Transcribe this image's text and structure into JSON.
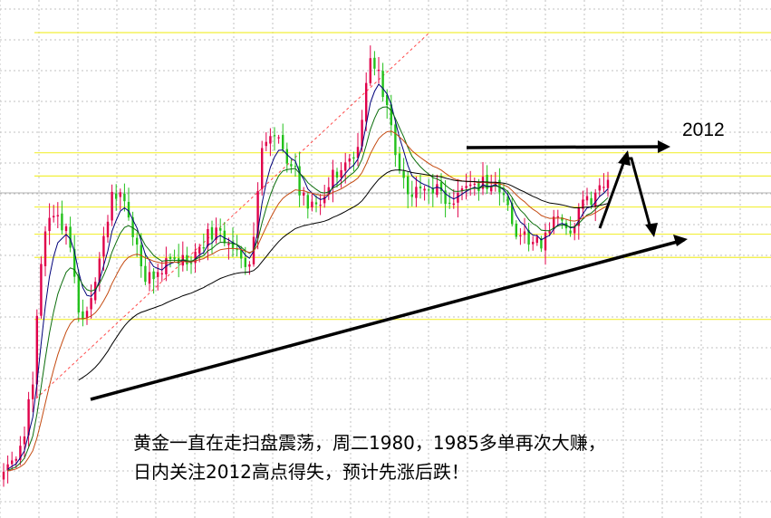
{
  "chart_data": {
    "type": "candlestick",
    "title": "",
    "annotation_label": "2012",
    "caption": [
      "黄金一直在走扫盘震荡，周二1980，1985多单再次大赚，",
      "日内关注2012高点得失，预计先涨后跌！"
    ],
    "price_range": [
      1900,
      2018
    ],
    "horizontal_levels": [
      2018,
      1987,
      1981,
      1973,
      1966,
      1960,
      1944
    ],
    "reference_levels": [
      2012,
      1985,
      1980
    ],
    "colors": {
      "up_candle": "#e0004a",
      "down_candle": "#22c11b",
      "ma_fast": "#00007a",
      "ma_medium": "#0c6e0c",
      "ma_slow": "#c44a10",
      "ma_long": "#000000",
      "level_line": "#f2ef3a",
      "grid": "#c0c0c0",
      "channel_line": "#ff4a4a",
      "trend_line": "#000000"
    },
    "grid": true,
    "candle_count": 146,
    "candles_close": [
      1904.7,
      1906.6,
      1907.6,
      1908.0,
      1911.4,
      1913.8,
      1923.4,
      1927.2,
      1944.9,
      1958.3,
      1966.7,
      1970.2,
      1970.7,
      1970.9,
      1967.0,
      1968.0,
      1962.5,
      1955.0,
      1945.8,
      1944.0,
      1946.2,
      1949.5,
      1953.7,
      1959.7,
      1965.5,
      1969.2,
      1976.9,
      1975.1,
      1976.8,
      1974.5,
      1970.3,
      1965.2,
      1963.3,
      1957.7,
      1953.7,
      1956.2,
      1954.4,
      1956.2,
      1955.9,
      1959.8,
      1959.6,
      1959.6,
      1958.4,
      1960.6,
      1958.2,
      1958.3,
      1961.5,
      1962.7,
      1962.3,
      1967.3,
      1964.6,
      1967.7,
      1966.9,
      1963.7,
      1963.6,
      1962.4,
      1962.1,
      1959.7,
      1957.5,
      1958.2,
      1965.3,
      1977.1,
      1988.2,
      1989.8,
      1991.3,
      1991.3,
      1991.0,
      1987.9,
      1984.2,
      1983.5,
      1983.6,
      1976.0,
      1976.7,
      1972.6,
      1974.4,
      1973.7,
      1973.6,
      1975.7,
      1978.1,
      1982.6,
      1980.6,
      1982.5,
      1984.5,
      1985.5,
      1985.5,
      1988.5,
      1995.5,
      2005.0,
      2011.4,
      2008.7,
      2008.4,
      2001.4,
      1999.3,
      1994.1,
      1986.4,
      1982.4,
      1980.5,
      1976.3,
      1975.6,
      1978.2,
      1977.8,
      1977.7,
      1977.5,
      1976.5,
      1978.9,
      1977.1,
      1973.8,
      1974.1,
      1973.9,
      1976.7,
      1977.8,
      1978.4,
      1978.8,
      1979.0,
      1977.1,
      1980.8,
      1977.6,
      1978.4,
      1979.5,
      1976.8,
      1976.1,
      1973.5,
      1968.6,
      1965.3,
      1965.7,
      1966.7,
      1963.3,
      1964.0,
      1965.3,
      1962.3,
      1966.4,
      1966.8,
      1970.5,
      1970.6,
      1969.5,
      1967.5,
      1966.2,
      1968.1,
      1972.7,
      1974.9,
      1975.8,
      1973.6,
      1976.7,
      1978.6,
      1978.2,
      1980.0
    ]
  }
}
